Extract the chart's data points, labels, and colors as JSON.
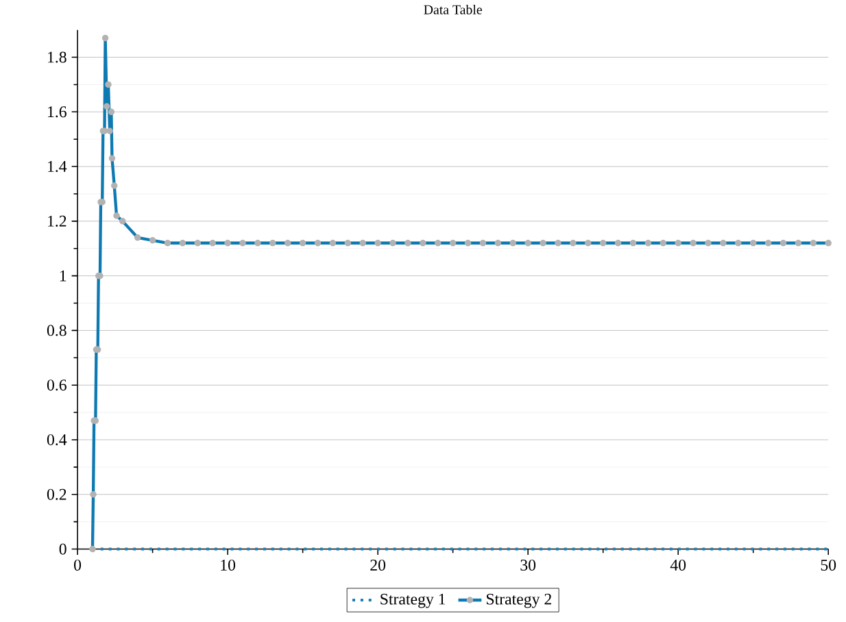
{
  "chart_data": {
    "type": "line",
    "title": "Data Table",
    "xlim": [
      0,
      50
    ],
    "xticks": [
      0,
      10,
      20,
      30,
      40,
      50
    ],
    "ylim": [
      0,
      1.9
    ],
    "yticks": [
      0,
      0.2,
      0.4,
      0.6,
      0.8,
      1,
      1.2,
      1.4,
      1.6,
      1.8
    ],
    "grid": "y",
    "legend": "bottom",
    "series": [
      {
        "name": "Strategy 1",
        "color": "#1a7fb5",
        "line_style": "dotted",
        "marker": "none",
        "x": [
          1,
          5,
          10,
          15,
          20,
          25,
          30,
          35,
          40,
          45,
          50
        ],
        "values": [
          0,
          0,
          0,
          0,
          0,
          0,
          0,
          0,
          0,
          0,
          0
        ]
      },
      {
        "name": "Strategy 2",
        "color": "#0f7ab2",
        "line_style": "solid",
        "marker": "circle",
        "x": [
          1,
          1.05,
          1.1,
          1.2,
          1.25,
          1.35,
          1.4,
          1.5,
          1.55,
          1.65,
          1.7,
          1.8,
          1.85,
          1.95,
          2.05,
          2.15,
          2.25,
          2.3,
          2.45,
          2.6,
          3,
          4,
          5,
          6,
          7,
          8,
          9,
          10,
          11,
          12,
          13,
          14,
          15,
          16,
          17,
          18,
          19,
          20,
          21,
          22,
          23,
          24,
          25,
          26,
          27,
          28,
          29,
          30,
          31,
          32,
          33,
          34,
          35,
          36,
          37,
          38,
          39,
          40,
          41,
          42,
          43,
          44,
          45,
          46,
          47,
          48,
          49,
          50
        ],
        "values": [
          0,
          0.2,
          0.47,
          0.47,
          0.73,
          0.73,
          1.0,
          1.0,
          1.27,
          1.27,
          1.53,
          1.53,
          1.87,
          1.62,
          1.7,
          1.53,
          1.6,
          1.43,
          1.33,
          1.22,
          1.2,
          1.14,
          1.13,
          1.12,
          1.12,
          1.12,
          1.12,
          1.12,
          1.12,
          1.12,
          1.12,
          1.12,
          1.12,
          1.12,
          1.12,
          1.12,
          1.12,
          1.12,
          1.12,
          1.12,
          1.12,
          1.12,
          1.12,
          1.12,
          1.12,
          1.12,
          1.12,
          1.12,
          1.12,
          1.12,
          1.12,
          1.12,
          1.12,
          1.12,
          1.12,
          1.12,
          1.12,
          1.12,
          1.12,
          1.12,
          1.12,
          1.12,
          1.12,
          1.12,
          1.12,
          1.12,
          1.12,
          1.12
        ]
      }
    ]
  }
}
